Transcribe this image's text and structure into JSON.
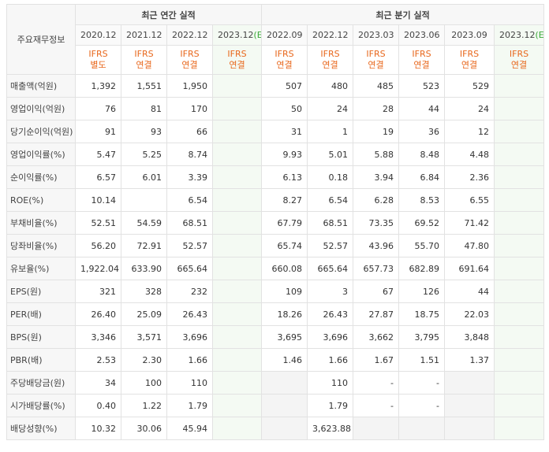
{
  "headers": {
    "corner": "주요재무정보",
    "annual_group": "최근 연간 실적",
    "quarter_group": "최근 분기 실적",
    "columns": [
      {
        "date": "2020.12",
        "est": "",
        "ifrs": "IFRS",
        "basis": "별도"
      },
      {
        "date": "2021.12",
        "est": "",
        "ifrs": "IFRS",
        "basis": "연결"
      },
      {
        "date": "2022.12",
        "est": "",
        "ifrs": "IFRS",
        "basis": "연결"
      },
      {
        "date": "2023.12",
        "est": "(E)",
        "ifrs": "IFRS",
        "basis": "연결"
      },
      {
        "date": "2022.09",
        "est": "",
        "ifrs": "IFRS",
        "basis": "연결"
      },
      {
        "date": "2022.12",
        "est": "",
        "ifrs": "IFRS",
        "basis": "연결"
      },
      {
        "date": "2023.03",
        "est": "",
        "ifrs": "IFRS",
        "basis": "연결"
      },
      {
        "date": "2023.06",
        "est": "",
        "ifrs": "IFRS",
        "basis": "연결"
      },
      {
        "date": "2023.09",
        "est": "",
        "ifrs": "IFRS",
        "basis": "연결"
      },
      {
        "date": "2023.12",
        "est": "(E)",
        "ifrs": "IFRS",
        "basis": "연결"
      }
    ]
  },
  "rows": [
    {
      "label": "매출액(억원)",
      "values": [
        "1,392",
        "1,551",
        "1,950",
        "",
        "507",
        "480",
        "485",
        "523",
        "529",
        ""
      ]
    },
    {
      "label": "영업이익(억원)",
      "values": [
        "76",
        "81",
        "170",
        "",
        "50",
        "24",
        "28",
        "44",
        "24",
        ""
      ]
    },
    {
      "label": "당기순이익(억원)",
      "values": [
        "91",
        "93",
        "66",
        "",
        "31",
        "1",
        "19",
        "36",
        "12",
        ""
      ]
    },
    {
      "label": "영업이익률(%)",
      "values": [
        "5.47",
        "5.25",
        "8.74",
        "",
        "9.93",
        "5.01",
        "5.88",
        "8.48",
        "4.48",
        ""
      ]
    },
    {
      "label": "순이익률(%)",
      "values": [
        "6.57",
        "6.01",
        "3.39",
        "",
        "6.13",
        "0.18",
        "3.94",
        "6.84",
        "2.36",
        ""
      ]
    },
    {
      "label": "ROE(%)",
      "values": [
        "10.14",
        "",
        "6.54",
        "",
        "8.27",
        "6.54",
        "6.28",
        "8.53",
        "6.55",
        ""
      ]
    },
    {
      "label": "부채비율(%)",
      "values": [
        "52.51",
        "54.59",
        "68.51",
        "",
        "67.79",
        "68.51",
        "73.35",
        "69.52",
        "71.42",
        ""
      ]
    },
    {
      "label": "당좌비율(%)",
      "values": [
        "56.20",
        "72.91",
        "52.57",
        "",
        "65.74",
        "52.57",
        "43.96",
        "55.70",
        "47.80",
        ""
      ]
    },
    {
      "label": "유보율(%)",
      "values": [
        "1,922.04",
        "633.90",
        "665.64",
        "",
        "660.08",
        "665.64",
        "657.73",
        "682.89",
        "691.64",
        ""
      ]
    },
    {
      "label": "EPS(원)",
      "values": [
        "321",
        "328",
        "232",
        "",
        "109",
        "3",
        "67",
        "126",
        "44",
        ""
      ]
    },
    {
      "label": "PER(배)",
      "values": [
        "26.40",
        "25.09",
        "26.43",
        "",
        "18.26",
        "26.43",
        "27.87",
        "18.75",
        "22.03",
        ""
      ]
    },
    {
      "label": "BPS(원)",
      "values": [
        "3,346",
        "3,571",
        "3,696",
        "",
        "3,695",
        "3,696",
        "3,662",
        "3,795",
        "3,848",
        ""
      ]
    },
    {
      "label": "PBR(배)",
      "values": [
        "2.53",
        "2.30",
        "1.66",
        "",
        "1.46",
        "1.66",
        "1.67",
        "1.51",
        "1.37",
        ""
      ]
    },
    {
      "label": "주당배당금(원)",
      "values": [
        "34",
        "100",
        "110",
        "",
        "",
        "110",
        "-",
        "-",
        "",
        ""
      ]
    },
    {
      "label": "시가배당률(%)",
      "values": [
        "0.40",
        "1.22",
        "1.79",
        "",
        "",
        "1.79",
        "-",
        "-",
        "",
        ""
      ]
    },
    {
      "label": "배당성향(%)",
      "values": [
        "10.32",
        "30.06",
        "45.94",
        "",
        "",
        "3,623.88",
        "",
        "",
        "",
        ""
      ]
    }
  ]
}
